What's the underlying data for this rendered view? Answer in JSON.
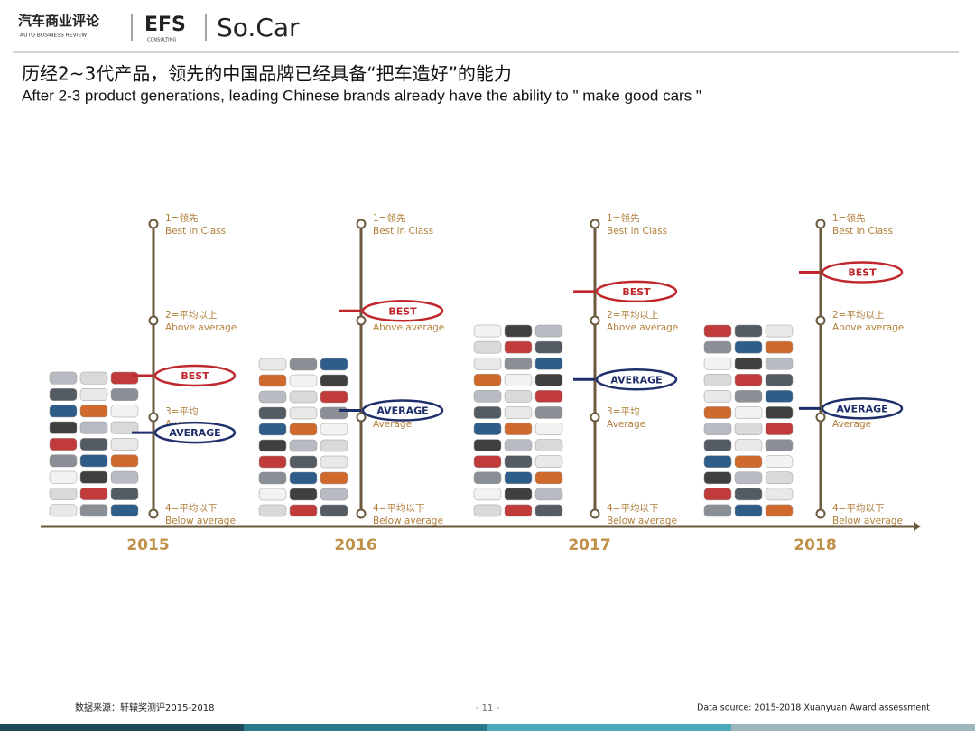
{
  "header": {
    "logo_cn": "汽车商业评论",
    "logo_en": "AUTO BUSINESS REVIEW",
    "logo_efs": "EFS",
    "logo_efs_sub": "CONSULTING",
    "logo_socar": "So.Car"
  },
  "title": "历经2~3代产品，领先的中国品牌已经具备“把车造好”的能力",
  "subtitle": "After 2-3 product generations, leading Chinese brands already have the ability to \" make good cars \"",
  "scale": {
    "range": [
      1,
      4
    ],
    "ticks": [
      {
        "value": 1,
        "cn": "1=领先",
        "en": "Best in Class"
      },
      {
        "value": 2,
        "cn": "2=平均以上",
        "en": "Above average"
      },
      {
        "value": 3,
        "cn": "3=平均",
        "en": "Average"
      },
      {
        "value": 4,
        "cn": "4=平均以下",
        "en": "Below average"
      }
    ]
  },
  "marker_labels": {
    "best": "BEST",
    "average": "AVERAGE"
  },
  "panels": [
    {
      "year": "2015",
      "best": 2.57,
      "average": 3.16
    },
    {
      "year": "2016",
      "best": 1.9,
      "average": 2.93
    },
    {
      "year": "2017",
      "best": 1.7,
      "average": 2.61
    },
    {
      "year": "2018",
      "best": 1.5,
      "average": 2.91
    }
  ],
  "footer": {
    "source_cn": "数据来源：轩辕奖测评2015-2018",
    "page": "- 11 -",
    "source_en": "Data source: 2015-2018 Xuanyuan Award assessment"
  }
}
